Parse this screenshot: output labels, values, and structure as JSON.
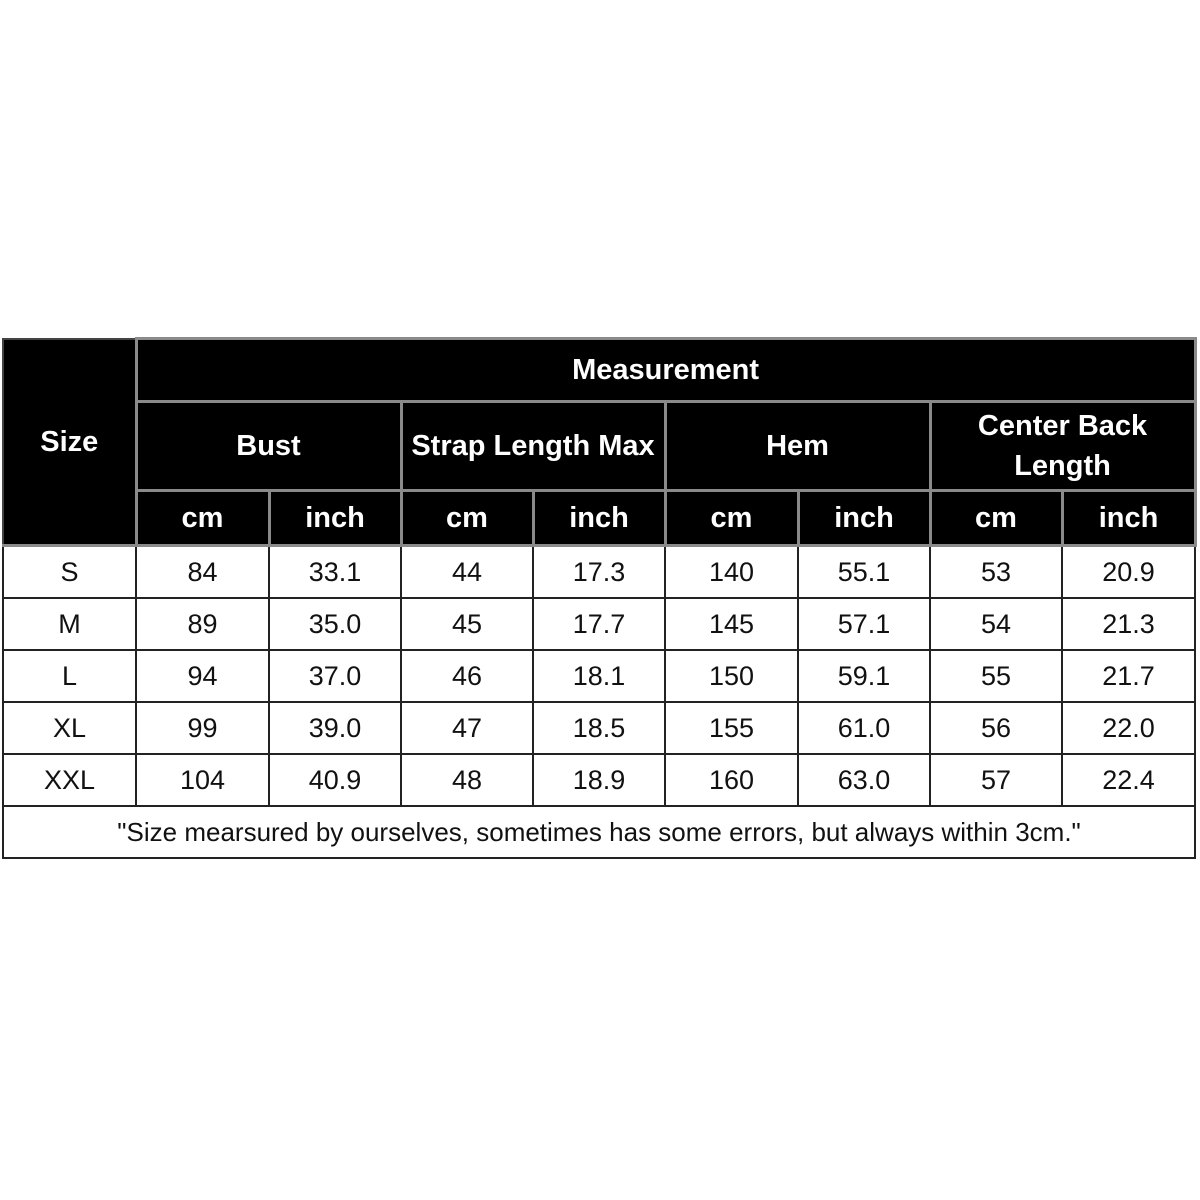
{
  "table": {
    "size_header": "Size",
    "group_header": "Measurement",
    "measures": [
      "Bust",
      "Strap Length Max",
      "Hem",
      "Center Back Length"
    ],
    "units": [
      "cm",
      "inch"
    ],
    "rows": [
      [
        "S",
        "84",
        "33.1",
        "44",
        "17.3",
        "140",
        "55.1",
        "53",
        "20.9"
      ],
      [
        "M",
        "89",
        "35.0",
        "45",
        "17.7",
        "145",
        "57.1",
        "54",
        "21.3"
      ],
      [
        "L",
        "94",
        "37.0",
        "46",
        "18.1",
        "150",
        "59.1",
        "55",
        "21.7"
      ],
      [
        "XL",
        "99",
        "39.0",
        "47",
        "18.5",
        "155",
        "61.0",
        "56",
        "22.0"
      ],
      [
        "XXL",
        "104",
        "40.9",
        "48",
        "18.9",
        "160",
        "63.0",
        "57",
        "22.4"
      ]
    ],
    "note": "\"Size mearsured by ourselves, sometimes has some errors, but always within 3cm.\""
  },
  "colors": {
    "header_bg": "#000000",
    "header_text": "#ffffff",
    "divider": "#8a8a8a"
  }
}
